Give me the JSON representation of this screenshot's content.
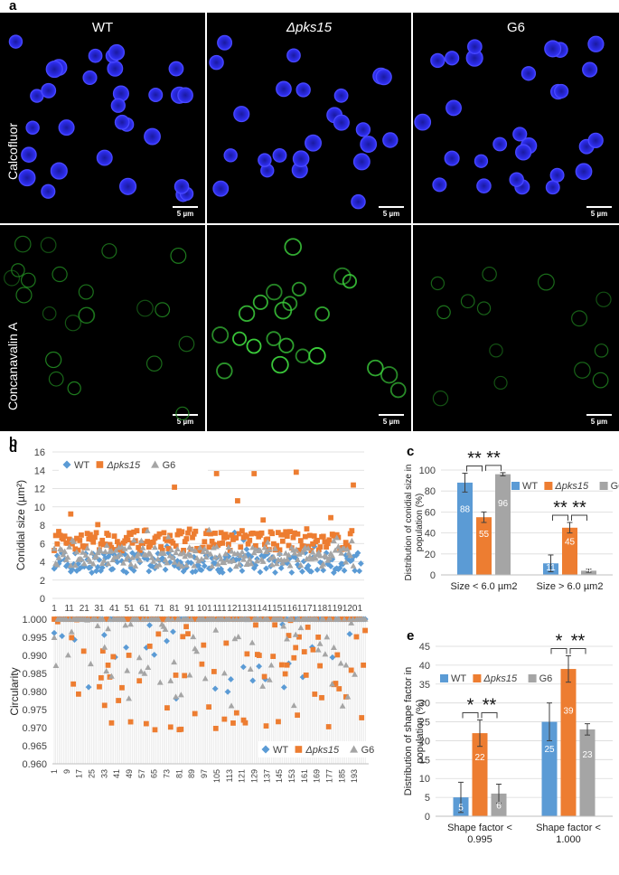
{
  "panel_a": {
    "label": "a",
    "columns": [
      "WT",
      "Δpks15",
      "G6"
    ],
    "rows": [
      "Calcofluor",
      "Concanavalin A"
    ],
    "scale_bar": "5 µm"
  },
  "chart_data": [
    {
      "panel": "b",
      "type": "scatter",
      "title": "",
      "ylabel": "Conidial size (µm²)",
      "xlabel": "",
      "ylim": [
        0,
        16
      ],
      "yticks": [
        0,
        2,
        4,
        6,
        8,
        10,
        12,
        14,
        16
      ],
      "xticks": [
        "1",
        "11",
        "21",
        "31",
        "41",
        "51",
        "61",
        "71",
        "81",
        "91",
        "101",
        "111",
        "121",
        "131",
        "141",
        "151",
        "161",
        "171",
        "181",
        "191",
        "201"
      ],
      "legend": [
        "WT",
        "Δpks15",
        "G6"
      ],
      "colors": {
        "WT": "#5B9BD5",
        "Δpks15": "#ED7D31",
        "G6": "#A5A5A5"
      },
      "series": [
        {
          "name": "WT",
          "n": 205,
          "approx_mean": 3.9,
          "approx_min": 2.0,
          "approx_max": 7.2
        },
        {
          "name": "Δpks15",
          "n": 200,
          "approx_mean": 6.3,
          "approx_min": 3.5,
          "approx_max": 14.2
        },
        {
          "name": "G6",
          "n": 200,
          "approx_mean": 4.6,
          "approx_min": 2.0,
          "approx_max": 7.5
        }
      ]
    },
    {
      "panel": "c",
      "type": "bar",
      "ylabel": "Distribution of conidial size in population (%)",
      "ylim": [
        0,
        100
      ],
      "yticks": [
        0,
        20,
        40,
        60,
        80,
        100
      ],
      "categories": [
        "Size < 6.0 µm2",
        "Size > 6.0 µm2"
      ],
      "legend": [
        "WT",
        "Δpks15",
        "G6"
      ],
      "series": [
        {
          "name": "WT",
          "values": [
            88,
            11
          ],
          "errors": [
            9,
            8
          ],
          "labels": [
            "88",
            "11"
          ]
        },
        {
          "name": "Δpks15",
          "values": [
            55,
            45
          ],
          "errors": [
            5,
            5
          ],
          "labels": [
            "55",
            "45"
          ]
        },
        {
          "name": "G6",
          "values": [
            96,
            4
          ],
          "errors": [
            1.5,
            1.5
          ],
          "labels": [
            "96",
            "4"
          ]
        }
      ],
      "significance": [
        "**",
        "**",
        "**",
        "**"
      ]
    },
    {
      "panel": "d",
      "type": "scatter",
      "ylabel": "Circularity",
      "ylim": [
        0.96,
        1.0
      ],
      "yticks": [
        "0.960",
        "0.965",
        "0.970",
        "0.975",
        "0.980",
        "0.985",
        "0.990",
        "0.995",
        "1.000"
      ],
      "xticks": [
        "1",
        "9",
        "17",
        "25",
        "33",
        "41",
        "49",
        "57",
        "65",
        "73",
        "81",
        "89",
        "97",
        "105",
        "113",
        "121",
        "129",
        "137",
        "145",
        "153",
        "161",
        "169",
        "177",
        "185",
        "193"
      ],
      "legend": [
        "WT",
        "Δpks15",
        "G6"
      ],
      "series": [
        {
          "name": "WT",
          "n": 200,
          "note": "mostly at 1.000"
        },
        {
          "name": "Δpks15",
          "n": 180,
          "approx_min": 0.969
        },
        {
          "name": "G6",
          "n": 180,
          "approx_min": 0.976
        }
      ]
    },
    {
      "panel": "e",
      "type": "bar",
      "ylabel": "Distribution of shape factor in population (%)",
      "ylim": [
        0,
        45
      ],
      "yticks": [
        0,
        5,
        10,
        15,
        20,
        25,
        30,
        35,
        40,
        45
      ],
      "categories": [
        "Shape factor < 0.995",
        "Shape factor < 1.000"
      ],
      "legend": [
        "WT",
        "Δpks15",
        "G6"
      ],
      "series": [
        {
          "name": "WT",
          "values": [
            5,
            25
          ],
          "errors": [
            4,
            5
          ],
          "labels": [
            "5",
            "25"
          ]
        },
        {
          "name": "Δpks15",
          "values": [
            22,
            39
          ],
          "errors": [
            3.5,
            3.5
          ],
          "labels": [
            "22",
            "39"
          ]
        },
        {
          "name": "G6",
          "values": [
            6,
            23
          ],
          "errors": [
            2.5,
            1.5
          ],
          "labels": [
            "6",
            "23"
          ]
        }
      ],
      "significance": [
        "*",
        "**",
        "*",
        "**"
      ]
    }
  ]
}
